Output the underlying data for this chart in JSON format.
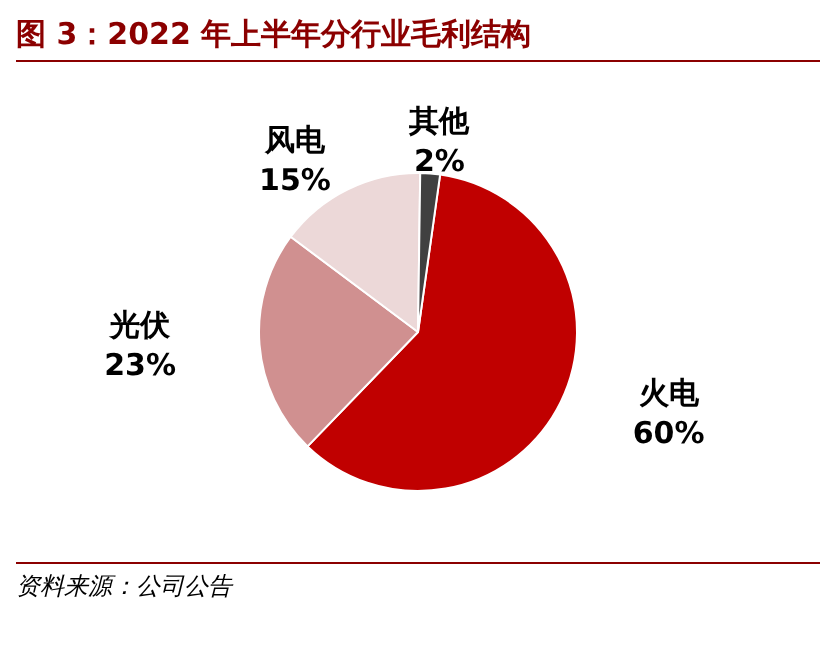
{
  "chart_data": {
    "type": "pie",
    "title": "图 3：2022 年上半年分行业毛利结构",
    "categories": [
      "火电",
      "光伏",
      "风电",
      "其他"
    ],
    "values": [
      60,
      23,
      15,
      2
    ],
    "value_labels": [
      "60%",
      "23%",
      "15%",
      "2%"
    ],
    "colors": [
      "#c00000",
      "#d09090",
      "#ecd8d8",
      "#404040"
    ],
    "legend": false,
    "annotations": [
      "资料来源：公司公告"
    ]
  }
}
